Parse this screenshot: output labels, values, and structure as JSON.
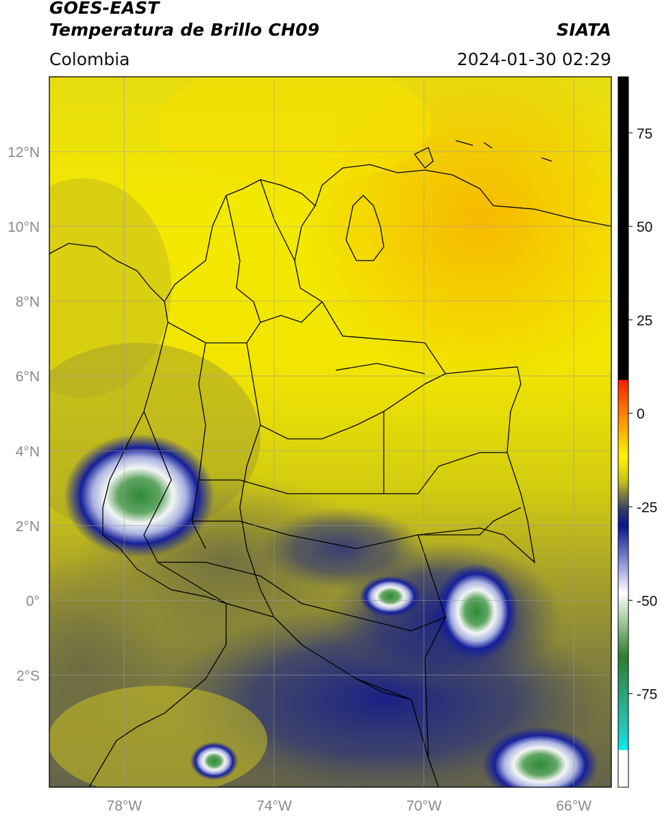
{
  "header": {
    "satellite": "GOES-EAST",
    "product": "Temperatura de Brillo CH09",
    "source": "SIATA",
    "region": "Colombia",
    "datetime": "2024-01-30 02:29"
  },
  "map": {
    "lon_range": [
      -80,
      -65
    ],
    "lat_range": [
      -5,
      14
    ],
    "lon_ticks": [
      {
        "value": -78,
        "label": "78°W"
      },
      {
        "value": -74,
        "label": "74°W"
      },
      {
        "value": -70,
        "label": "70°W"
      },
      {
        "value": -66,
        "label": "66°W"
      }
    ],
    "lat_ticks": [
      {
        "value": 12,
        "label": "12°N"
      },
      {
        "value": 10,
        "label": "10°N"
      },
      {
        "value": 8,
        "label": "8°N"
      },
      {
        "value": 6,
        "label": "6°N"
      },
      {
        "value": 4,
        "label": "4°N"
      },
      {
        "value": 2,
        "label": "2°N"
      },
      {
        "value": 0,
        "label": "0°"
      },
      {
        "value": -2,
        "label": "2°S"
      }
    ],
    "gridlines": true,
    "colors": {
      "warm_yellow": "#f5e600",
      "orange": "#f5c000",
      "olive": "#8f8a2a",
      "dark_olive": "#5d5a3a",
      "navy": "#0c1a86",
      "white": "#f4f7f8",
      "green": "#3e9a45"
    },
    "cloud_features": [
      {
        "name": "cold-top-pacific-west",
        "lon": -77.6,
        "lat": 2.8
      },
      {
        "name": "cold-top-amazon-northeast",
        "lon": -68.6,
        "lat": -0.3
      },
      {
        "name": "cold-top-amazon-southeast",
        "lon": -66.9,
        "lat": -4.4
      },
      {
        "name": "cold-top-amazon-central",
        "lon": -70.9,
        "lat": 0.1
      },
      {
        "name": "cold-top-amazon-south-west",
        "lon": -75.6,
        "lat": -4.3
      }
    ]
  },
  "colorbar": {
    "range": [
      -100,
      90
    ],
    "ticks": [
      {
        "value": 75,
        "label": "75"
      },
      {
        "value": 50,
        "label": "50"
      },
      {
        "value": 25,
        "label": "25"
      },
      {
        "value": 0,
        "label": "0"
      },
      {
        "value": -25,
        "label": "-25"
      },
      {
        "value": -50,
        "label": "-50"
      },
      {
        "value": -75,
        "label": "-75"
      }
    ],
    "stops": [
      {
        "value": 90,
        "color": "#000000"
      },
      {
        "value": 9,
        "color": "#000000"
      },
      {
        "value": 8.9,
        "color": "#ff1a00"
      },
      {
        "value": 2,
        "color": "#ff6a00"
      },
      {
        "value": -8,
        "color": "#ffd300"
      },
      {
        "value": -12,
        "color": "#fff200"
      },
      {
        "value": -18,
        "color": "#c8c218"
      },
      {
        "value": -22,
        "color": "#7a7a40"
      },
      {
        "value": -26,
        "color": "#2f3a6a"
      },
      {
        "value": -30,
        "color": "#0a148c"
      },
      {
        "value": -40,
        "color": "#8c94d6"
      },
      {
        "value": -48,
        "color": "#ffffff"
      },
      {
        "value": -55,
        "color": "#a8cfa0"
      },
      {
        "value": -65,
        "color": "#2d7d2f"
      },
      {
        "value": -85,
        "color": "#27c8c0"
      },
      {
        "value": -90,
        "color": "#00f0f0"
      },
      {
        "value": -90.1,
        "color": "#ffffff"
      },
      {
        "value": -100,
        "color": "#ffffff"
      }
    ]
  }
}
